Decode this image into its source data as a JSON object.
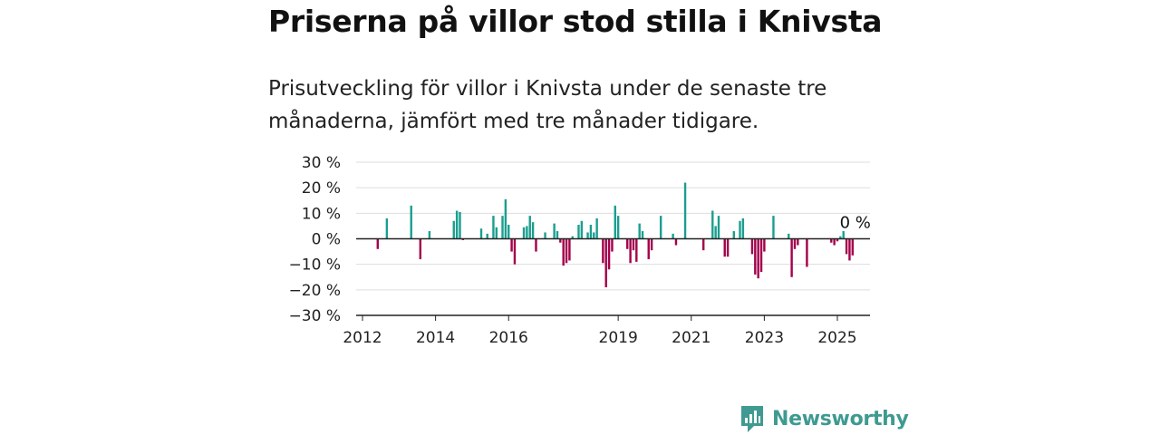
{
  "header": {
    "title": "Priserna på villor stod stilla i Knivsta",
    "subtitle": "Prisutveckling för villor i Knivsta under de senaste tre månaderna, jämfört med tre månader tidigare."
  },
  "brand": {
    "name": "Newsworthy",
    "icon": "newsworthy-logo-icon",
    "color": "#3f9a91"
  },
  "chart_data": {
    "type": "bar",
    "title": "",
    "xlabel": "",
    "ylabel": "",
    "x_ticks": [
      "2012",
      "2014",
      "2016",
      "2019",
      "2021",
      "2023",
      "2025"
    ],
    "y_ticks": [
      "30 %",
      "20 %",
      "10 %",
      "0 %",
      "−10 %",
      "−20 %",
      "−30 %"
    ],
    "ylim": [
      -30,
      30
    ],
    "xlim": [
      "2012-01",
      "2025-12"
    ],
    "grid": true,
    "colors": {
      "positive": "#1a9e8f",
      "negative": "#a3004b"
    },
    "annotation": {
      "text": "0 %",
      "x": "2025-03",
      "y": 0
    },
    "points": [
      {
        "x": "2012-06",
        "y": -4
      },
      {
        "x": "2012-09",
        "y": 8
      },
      {
        "x": "2013-05",
        "y": 13
      },
      {
        "x": "2013-08",
        "y": -8
      },
      {
        "x": "2013-11",
        "y": 3
      },
      {
        "x": "2014-07",
        "y": 7
      },
      {
        "x": "2014-08",
        "y": 11
      },
      {
        "x": "2014-09",
        "y": 10.5
      },
      {
        "x": "2014-10",
        "y": -0.5
      },
      {
        "x": "2015-04",
        "y": 4
      },
      {
        "x": "2015-06",
        "y": 2
      },
      {
        "x": "2015-08",
        "y": 9
      },
      {
        "x": "2015-09",
        "y": 4.5
      },
      {
        "x": "2015-11",
        "y": 9
      },
      {
        "x": "2015-12",
        "y": 15.5
      },
      {
        "x": "2016-01",
        "y": 5.5
      },
      {
        "x": "2016-02",
        "y": -5
      },
      {
        "x": "2016-03",
        "y": -10
      },
      {
        "x": "2016-06",
        "y": 4.5
      },
      {
        "x": "2016-07",
        "y": 5
      },
      {
        "x": "2016-08",
        "y": 9
      },
      {
        "x": "2016-09",
        "y": 6.5
      },
      {
        "x": "2016-10",
        "y": -5
      },
      {
        "x": "2017-01",
        "y": 2.5
      },
      {
        "x": "2017-04",
        "y": 6
      },
      {
        "x": "2017-05",
        "y": 3
      },
      {
        "x": "2017-06",
        "y": -1.5
      },
      {
        "x": "2017-07",
        "y": -10.5
      },
      {
        "x": "2017-08",
        "y": -9.5
      },
      {
        "x": "2017-09",
        "y": -8.5
      },
      {
        "x": "2017-10",
        "y": 1
      },
      {
        "x": "2017-12",
        "y": 5.5
      },
      {
        "x": "2018-01",
        "y": 7
      },
      {
        "x": "2018-03",
        "y": 2.5
      },
      {
        "x": "2018-04",
        "y": 5.5
      },
      {
        "x": "2018-05",
        "y": 2.5
      },
      {
        "x": "2018-06",
        "y": 8
      },
      {
        "x": "2018-08",
        "y": -9.5
      },
      {
        "x": "2018-09",
        "y": -19
      },
      {
        "x": "2018-10",
        "y": -12
      },
      {
        "x": "2018-11",
        "y": -5
      },
      {
        "x": "2018-12",
        "y": 13
      },
      {
        "x": "2019-01",
        "y": 9
      },
      {
        "x": "2019-04",
        "y": -4
      },
      {
        "x": "2019-05",
        "y": -9.5
      },
      {
        "x": "2019-06",
        "y": -4.5
      },
      {
        "x": "2019-07",
        "y": -9
      },
      {
        "x": "2019-08",
        "y": 6
      },
      {
        "x": "2019-09",
        "y": 3
      },
      {
        "x": "2019-11",
        "y": -8
      },
      {
        "x": "2019-12",
        "y": -4.5
      },
      {
        "x": "2020-03",
        "y": 9
      },
      {
        "x": "2020-07",
        "y": 2
      },
      {
        "x": "2020-08",
        "y": -2.5
      },
      {
        "x": "2020-11",
        "y": 22
      },
      {
        "x": "2021-05",
        "y": -4.5
      },
      {
        "x": "2021-08",
        "y": 11
      },
      {
        "x": "2021-09",
        "y": 5
      },
      {
        "x": "2021-10",
        "y": 9
      },
      {
        "x": "2021-12",
        "y": -7
      },
      {
        "x": "2022-01",
        "y": -7
      },
      {
        "x": "2022-03",
        "y": 3
      },
      {
        "x": "2022-05",
        "y": 7
      },
      {
        "x": "2022-06",
        "y": 8
      },
      {
        "x": "2022-09",
        "y": -6
      },
      {
        "x": "2022-10",
        "y": -14
      },
      {
        "x": "2022-11",
        "y": -15.5
      },
      {
        "x": "2022-12",
        "y": -13
      },
      {
        "x": "2023-01",
        "y": -5
      },
      {
        "x": "2023-04",
        "y": 9
      },
      {
        "x": "2023-09",
        "y": 2
      },
      {
        "x": "2023-10",
        "y": -15
      },
      {
        "x": "2023-11",
        "y": -4
      },
      {
        "x": "2023-12",
        "y": -2.5
      },
      {
        "x": "2024-03",
        "y": -11
      },
      {
        "x": "2024-11",
        "y": -1.5
      },
      {
        "x": "2024-12",
        "y": -2.5
      },
      {
        "x": "2025-01",
        "y": -1
      },
      {
        "x": "2025-02",
        "y": 1
      },
      {
        "x": "2025-03",
        "y": 3
      },
      {
        "x": "2025-04",
        "y": -6
      },
      {
        "x": "2025-05",
        "y": -8.5
      },
      {
        "x": "2025-06",
        "y": -6.5
      }
    ]
  }
}
